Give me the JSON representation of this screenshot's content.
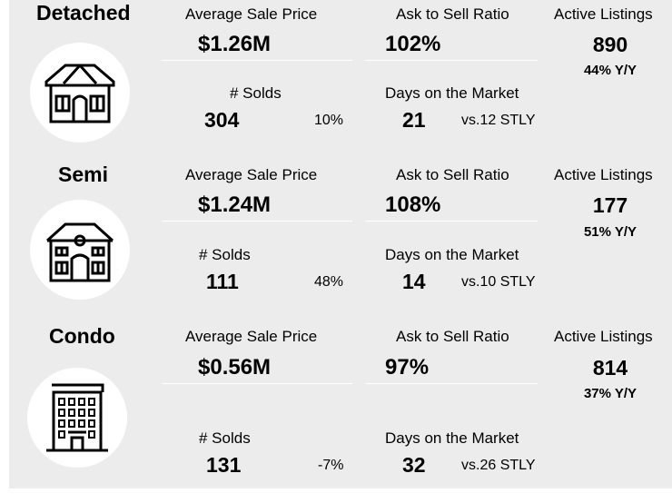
{
  "sections": [
    {
      "type": "Detached",
      "icon": "detached-house-icon",
      "avg_price_label": "Average Sale Price",
      "avg_price": "$1.26M",
      "ask_sell_label": "Ask to Sell Ratio",
      "ask_sell": "102%",
      "active_label": "Active Listings",
      "active": "890",
      "active_yy": "44% Y/Y",
      "solds_label": "# Solds",
      "solds": "304",
      "solds_change": "10%",
      "dom_label": "Days on the Market",
      "dom": "21",
      "dom_stly": "vs.12 STLY"
    },
    {
      "type": "Semi",
      "icon": "semi-house-icon",
      "avg_price_label": "Average Sale Price",
      "avg_price": "$1.24M",
      "ask_sell_label": "Ask to Sell Ratio",
      "ask_sell": "108%",
      "active_label": "Active Listings",
      "active": "177",
      "active_yy": "51% Y/Y",
      "solds_label": "# Solds",
      "solds": "111",
      "solds_change": "48%",
      "dom_label": "Days on the Market",
      "dom": "14",
      "dom_stly": "vs.10 STLY"
    },
    {
      "type": "Condo",
      "icon": "condo-building-icon",
      "avg_price_label": "Average Sale Price",
      "avg_price": "$0.56M",
      "ask_sell_label": "Ask to Sell Ratio",
      "ask_sell": "97%",
      "active_label": "Active Listings",
      "active": "814",
      "active_yy": "37% Y/Y",
      "solds_label": "# Solds",
      "solds": "131",
      "solds_change": "-7%",
      "dom_label": "Days on the Market",
      "dom": "32",
      "dom_stly": "vs.26 STLY"
    }
  ]
}
